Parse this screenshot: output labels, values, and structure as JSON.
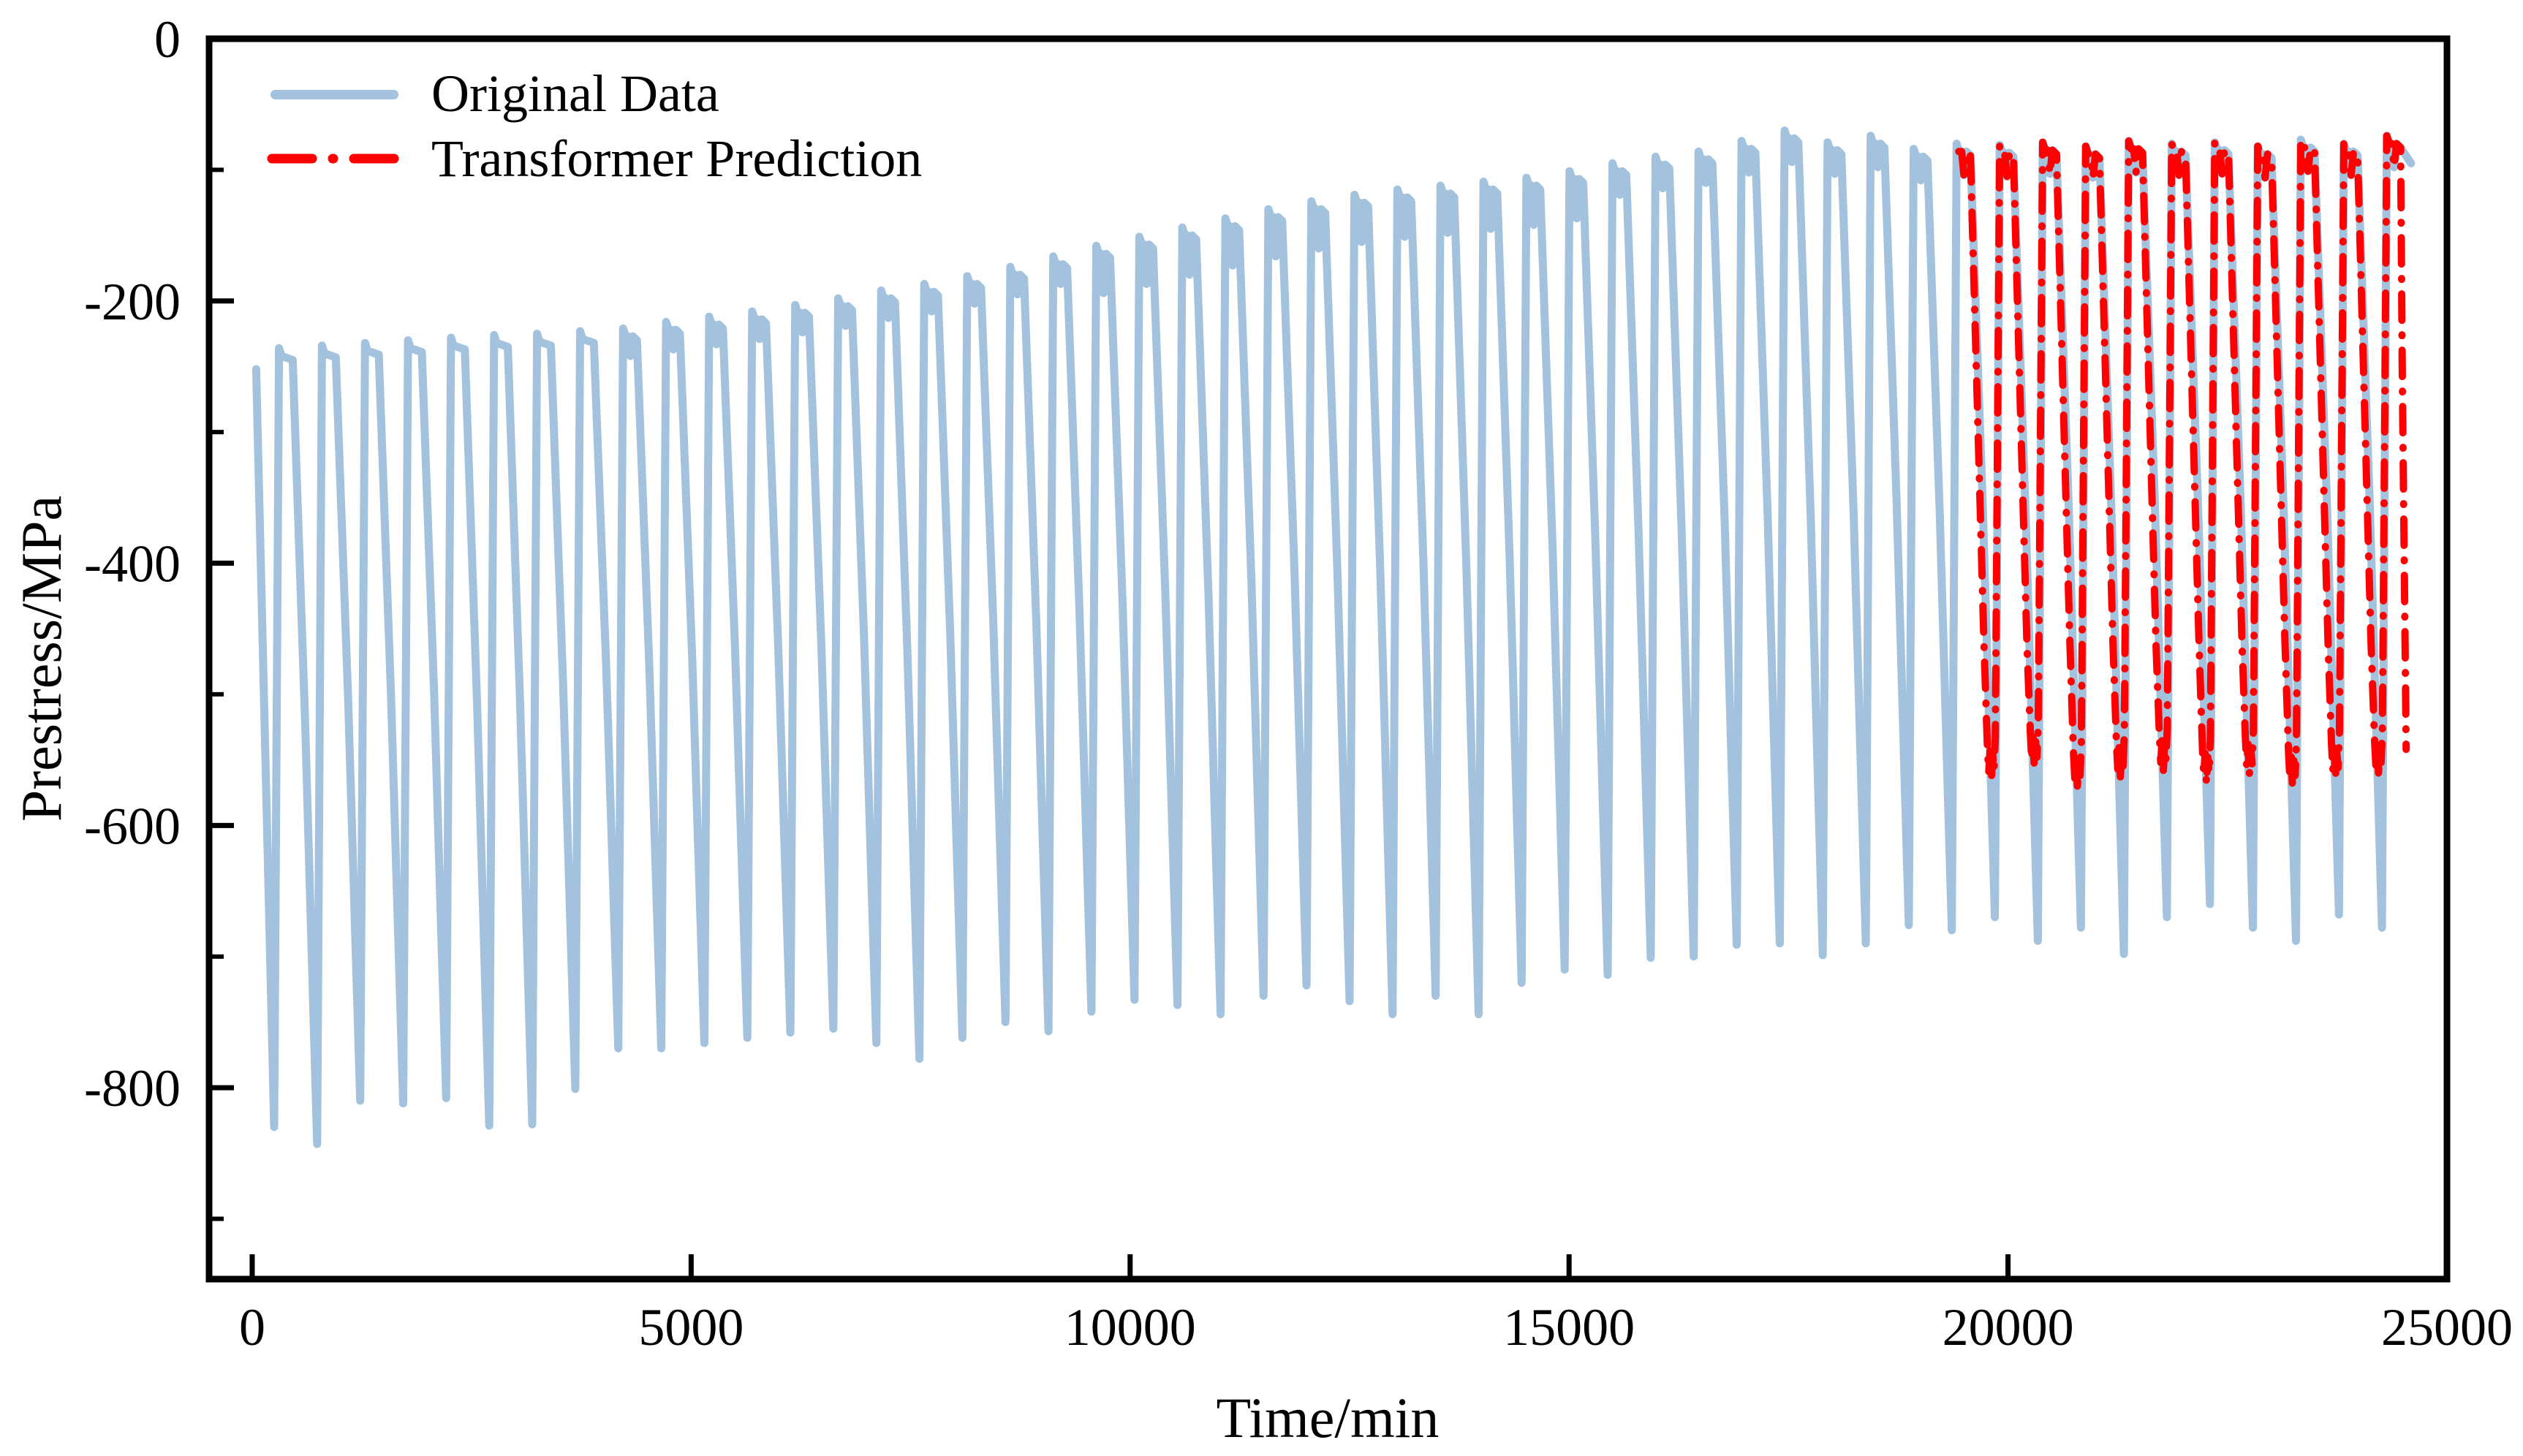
{
  "figure": {
    "background": "#ffffff"
  },
  "chart_data": {
    "type": "line",
    "title": "",
    "xlabel": "Time/min",
    "ylabel": "Prestress/MPa",
    "xlim": [
      -491,
      25000
    ],
    "ylim": [
      -946,
      0
    ],
    "grid": false,
    "x_tick_values": [
      0,
      5000,
      10000,
      15000,
      20000,
      25000
    ],
    "x_tick_labels": [
      "0",
      "5000",
      "10000",
      "15000",
      "20000",
      "25000"
    ],
    "y_tick_values": [
      0,
      -200,
      -400,
      -600,
      -800
    ],
    "y_tick_labels": [
      "0",
      "-200",
      "-400",
      "-600",
      "-800"
    ],
    "y_minor_tick_values": [
      -100,
      -300,
      -500,
      -700,
      -900
    ],
    "legend_position": "top-left-inside",
    "legend": [
      {
        "label": "Original Data",
        "color": "#a2c2dd",
        "style": "solid"
      },
      {
        "label": "Transformer Prediction",
        "color": "#ff0000",
        "style": "dash-dot"
      }
    ],
    "series_model": {
      "description": "Cyclic prestress signal: flat tops with long descents to sharp troughs; prediction overlays last ~10 cycles and bottoms out near -545 MPa",
      "period_min": 490,
      "top_time_offset": 390,
      "trough_time_offset": 250,
      "original": {
        "name": "Original Data",
        "color": "#a2c2dd",
        "start_point": {
          "t": 45,
          "v": -252
        },
        "end_point": {
          "t": 24590,
          "v": -95
        },
        "cycle_tops": [
          -242,
          -240,
          -238,
          -236,
          -234,
          -232,
          -231,
          -229,
          -227,
          -222,
          -218,
          -214,
          -209,
          -204,
          -198,
          -193,
          -187,
          -180,
          -172,
          -164,
          -157,
          -150,
          -143,
          -136,
          -130,
          -125,
          -121,
          -118,
          -115,
          -112,
          -107,
          -101,
          -96,
          -92,
          -84,
          -76,
          -85,
          -80,
          -90,
          -86,
          -87,
          -85,
          -88,
          -84,
          -86,
          -85,
          -88,
          -83,
          -86,
          -80
        ],
        "cycle_troughs": [
          -830,
          -843,
          -810,
          -812,
          -808,
          -829,
          -828,
          -801,
          -770,
          -770,
          -766,
          -762,
          -758,
          -755,
          -766,
          -778,
          -762,
          -750,
          -757,
          -742,
          -733,
          -737,
          -744,
          -730,
          -722,
          -734,
          -744,
          -730,
          -744,
          -720,
          -710,
          -714,
          -701,
          -700,
          -691,
          -690,
          -699,
          -690,
          -676,
          -680,
          -670,
          -688,
          -678,
          -698,
          -670,
          -660,
          -678,
          -688,
          -668,
          -678
        ],
        "plateau_notch_depths": [
          0,
          0,
          0,
          0,
          0,
          0,
          0,
          0,
          15,
          15,
          15,
          15,
          15,
          15,
          15,
          15,
          15,
          15,
          15,
          30,
          30,
          30,
          30,
          30,
          30,
          30,
          30,
          30,
          30,
          30,
          30,
          18,
          18,
          18,
          18,
          18,
          18,
          18,
          18,
          18,
          18,
          18,
          18,
          18,
          18,
          18,
          18,
          18,
          18,
          18
        ]
      },
      "prediction": {
        "name": "Transformer Prediction",
        "color": "#ff0000",
        "t_start": 19440,
        "t_end": 24535,
        "first_cycle_index": 39,
        "bottom_levels": [
          -548,
          -538,
          -552,
          -545,
          -540,
          -550,
          -543,
          -552,
          -546,
          -542
        ],
        "bottom_jag_offsets": [
          8,
          -12,
          5,
          -18,
          2,
          -10,
          15
        ],
        "end_value": -542
      }
    }
  }
}
